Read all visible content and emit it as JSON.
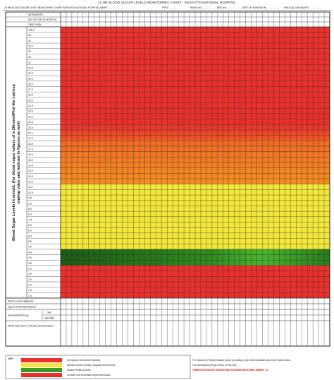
{
  "title": "24 HR BLOOD SUGAR LEVELS MONITORING CHART · KENYATTA NATIONAL HOSPITAL",
  "header": {
    "left": "24 HR BLOOD SUGAR LEVEL MONITORING CHART KENYATTA NATIONAL HOSPITAL NAME:……………………………",
    "ipno": "IPNO: ……………",
    "ward": "WARD NO: ……………",
    "bed": "BED NO: …………",
    "date_adm": "DATE OF ADMISSION: ……………",
    "diagnosis": "MEDICAL DIAGNOSIS: ……………"
  },
  "rows_top": [
    "DATE/MONTH",
    "DAY OF STAY IN HOSPITAL",
    "TIME GIVEN"
  ],
  "levels": [
    "≥35.0",
    "35",
    "34",
    "33.9",
    "33",
    "32",
    "31",
    "30.5",
    "30.5",
    "29.5",
    "28.5",
    "27.5",
    "26.5",
    "25.5",
    "24.5",
    "23.5",
    "22.5",
    "21.5",
    "20.8",
    "20.4",
    "19.5",
    "18.5",
    "17.5",
    "16.5",
    "15.8",
    "14.9",
    "14.5",
    "13.9",
    "12.5",
    "11.5",
    "10.9",
    "9.9",
    "9.5",
    "8.9",
    "8.3",
    "7.5",
    "6.9",
    "6.5",
    "6.4",
    "5.5",
    "4.9",
    "4.4",
    "3.9",
    "3.5",
    "3.4",
    "2.9",
    "2.5",
    "2.2",
    "1.9",
    "1.5"
  ],
  "side_label": "Blood Sugar Levels in mmol/L (for blood sugar values of ≥ 20mmol/Plot the corresponding value and indicate in figures as well)",
  "bottom_rows": [
    "Nurse's name /signature",
    "Type of Fluid Administered",
    "Administered Drugs",
    "Meals taken prior to the last and time taken"
  ],
  "bottom_sub": {
    "oral": "Oral",
    "injectable": "Injectable"
  },
  "key": {
    "label": "KEY",
    "items": [
      {
        "color": "#e8312e",
        "text": "Emergency Intervention Needed"
      },
      {
        "color": "#f2e63a",
        "text": "Normal Levels: Continue Regular Interventions"
      },
      {
        "color": "#3d9a2d",
        "text": "Monitor Patient Closely"
      },
      {
        "color": "#e8312e",
        "text": "Consult Your Immediate Supervisor/Doctor"
      }
    ]
  },
  "notes": {
    "line1": "For initial entry Please indicate clearly by writing on the cell/immediately above the plotted value",
    "line2": "For Administered Drugs Check (V) the Box",
    "line3": "*OMMITTED DRUGS SHOULD BE DOCUMENTED IN RED (INSERT X)"
  },
  "colors": {
    "red": "#e8312e",
    "yellow": "#f2e63a",
    "green": "#2f8a1e",
    "orange": "#f28c1c"
  }
}
